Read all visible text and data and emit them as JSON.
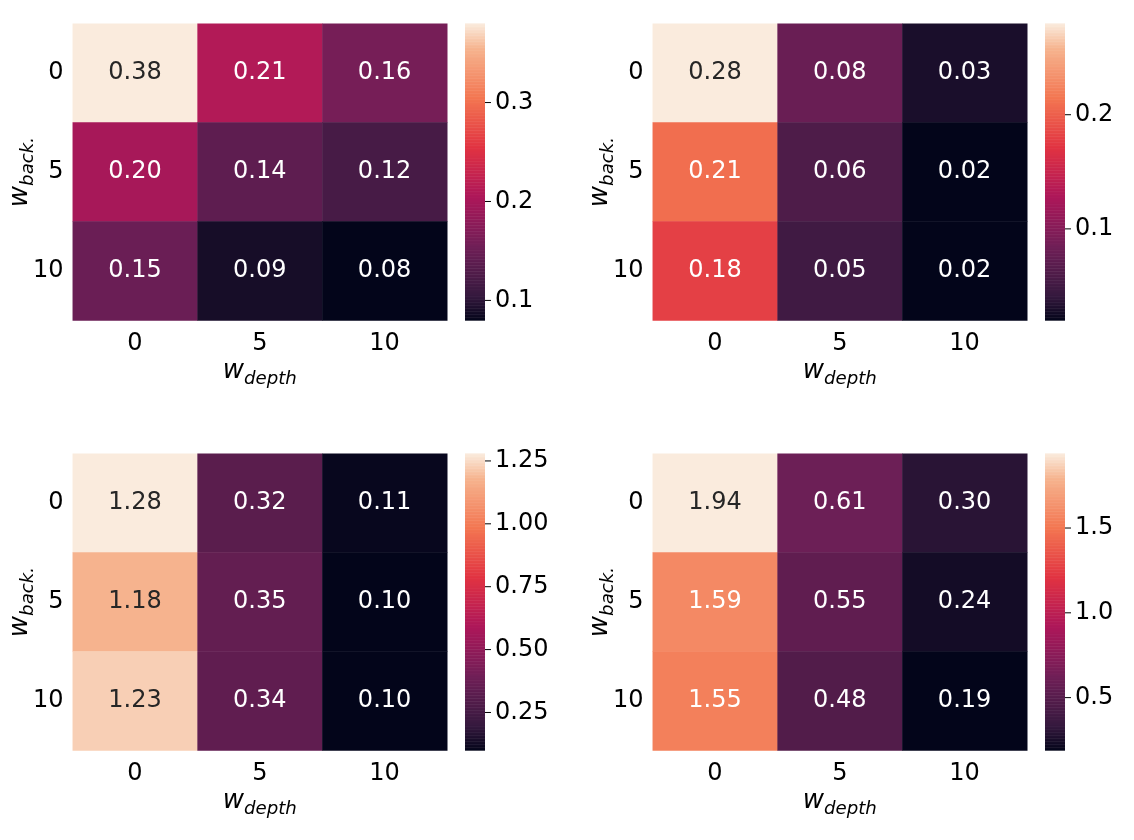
{
  "chart_data": [
    {
      "type": "heatmap",
      "xlabel": "w$_{depth}$",
      "ylabel": "w$_{back.}$",
      "categories": [
        "0",
        "5",
        "10"
      ],
      "y_categories": [
        "0",
        "5",
        "10"
      ],
      "cells": [
        [
          0.38,
          0.21,
          0.16
        ],
        [
          0.2,
          0.14,
          0.12
        ],
        [
          0.15,
          0.09,
          0.08
        ]
      ],
      "cell_labels": [
        [
          "0.38",
          "0.21",
          "0.16"
        ],
        [
          "0.20",
          "0.14",
          "0.12"
        ],
        [
          "0.15",
          "0.09",
          "0.08"
        ]
      ],
      "clim": [
        0.08,
        0.38
      ],
      "cticks": [
        0.1,
        0.2,
        0.3
      ]
    },
    {
      "type": "heatmap",
      "xlabel": "w$_{depth}$",
      "ylabel": "w$_{back.}$",
      "categories": [
        "0",
        "5",
        "10"
      ],
      "y_categories": [
        "0",
        "5",
        "10"
      ],
      "cells": [
        [
          0.28,
          0.08,
          0.03
        ],
        [
          0.21,
          0.06,
          0.02
        ],
        [
          0.18,
          0.05,
          0.02
        ]
      ],
      "cell_labels": [
        [
          "0.28",
          "0.08",
          "0.03"
        ],
        [
          "0.21",
          "0.06",
          "0.02"
        ],
        [
          "0.18",
          "0.05",
          "0.02"
        ]
      ],
      "clim": [
        0.02,
        0.28
      ],
      "cticks": [
        0.1,
        0.2
      ]
    },
    {
      "type": "heatmap",
      "xlabel": "w$_{depth}$",
      "ylabel": "w$_{back.}$",
      "categories": [
        "0",
        "5",
        "10"
      ],
      "y_categories": [
        "0",
        "5",
        "10"
      ],
      "cells": [
        [
          1.28,
          0.32,
          0.11
        ],
        [
          1.18,
          0.35,
          0.1
        ],
        [
          1.23,
          0.34,
          0.1
        ]
      ],
      "cell_labels": [
        [
          "1.28",
          "0.32",
          "0.11"
        ],
        [
          "1.18",
          "0.35",
          "0.10"
        ],
        [
          "1.23",
          "0.34",
          "0.10"
        ]
      ],
      "clim": [
        0.1,
        1.28
      ],
      "cticks": [
        {
          "value": 0.25,
          "label": "0.25"
        },
        {
          "value": 0.5,
          "label": "0.50"
        },
        {
          "value": 0.75,
          "label": "0.75"
        },
        {
          "value": 1,
          "label": "1.00"
        },
        {
          "value": 1.25,
          "label": "1.25"
        }
      ]
    },
    {
      "type": "heatmap",
      "xlabel": "w$_{depth}$",
      "ylabel": "w$_{back.}$",
      "categories": [
        "0",
        "5",
        "10"
      ],
      "y_categories": [
        "0",
        "5",
        "10"
      ],
      "cells": [
        [
          1.94,
          0.61,
          0.3
        ],
        [
          1.59,
          0.55,
          0.24
        ],
        [
          1.55,
          0.48,
          0.19
        ]
      ],
      "cell_labels": [
        [
          "1.94",
          "0.61",
          "0.30"
        ],
        [
          "1.59",
          "0.55",
          "0.24"
        ],
        [
          "1.55",
          "0.48",
          "0.19"
        ]
      ],
      "clim": [
        0.19,
        1.94
      ],
      "cticks": [
        0.5,
        {
          "value": 1,
          "label": "1.0"
        },
        1.5
      ]
    }
  ]
}
